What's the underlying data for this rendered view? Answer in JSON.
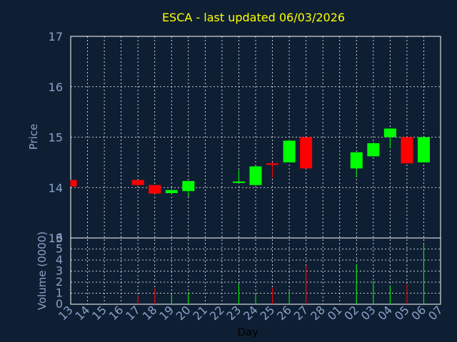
{
  "chart_data": {
    "type": "candlestick",
    "title": "ESCA - last updated 06/03/2026",
    "xlabel": "Day",
    "ylabel_price": "Price",
    "ylabel_volume": "Volume (0000)",
    "x_ticks": [
      "13",
      "14",
      "15",
      "16",
      "17",
      "18",
      "19",
      "20",
      "21",
      "22",
      "23",
      "24",
      "25",
      "26",
      "27",
      "28",
      "01",
      "02",
      "03",
      "04",
      "05",
      "06",
      "07"
    ],
    "price_ylim": [
      13,
      17
    ],
    "price_ticks": [
      "13",
      "14",
      "15",
      "16",
      "17"
    ],
    "volume_ylim": [
      0,
      6
    ],
    "volume_ticks": [
      "0",
      "1",
      "2",
      "3",
      "4",
      "5",
      "6"
    ],
    "grid": true,
    "up_color": "#00ff00",
    "down_color": "#ff0000",
    "candles": [
      {
        "day": "13",
        "open": 14.15,
        "high": 14.15,
        "low": 14.02,
        "close": 14.02,
        "volume": 0.0
      },
      {
        "day": "17",
        "open": 14.15,
        "high": 14.15,
        "low": 14.05,
        "close": 14.05,
        "volume": 0.8
      },
      {
        "day": "18",
        "open": 14.05,
        "high": 14.05,
        "low": 13.88,
        "close": 13.88,
        "volume": 1.4
      },
      {
        "day": "19",
        "open": 13.89,
        "high": 13.97,
        "low": 13.86,
        "close": 13.95,
        "volume": 0.9
      },
      {
        "day": "20",
        "open": 13.93,
        "high": 14.13,
        "low": 13.82,
        "close": 14.13,
        "volume": 1.1
      },
      {
        "day": "23",
        "open": 14.1,
        "high": 14.35,
        "low": 14.08,
        "close": 14.12,
        "volume": 1.9
      },
      {
        "day": "24",
        "open": 14.05,
        "high": 14.42,
        "low": 14.05,
        "close": 14.42,
        "volume": 0.9
      },
      {
        "day": "25",
        "open": 14.48,
        "high": 14.5,
        "low": 14.2,
        "close": 14.45,
        "volume": 1.5
      },
      {
        "day": "26",
        "open": 14.5,
        "high": 14.95,
        "low": 14.5,
        "close": 14.93,
        "volume": 1.2
      },
      {
        "day": "27",
        "open": 15.0,
        "high": 15.0,
        "low": 14.38,
        "close": 14.38,
        "volume": 3.5
      },
      {
        "day": "02",
        "open": 14.38,
        "high": 14.7,
        "low": 14.2,
        "close": 14.7,
        "volume": 3.6
      },
      {
        "day": "03",
        "open": 14.62,
        "high": 14.9,
        "low": 14.62,
        "close": 14.88,
        "volume": 2.1
      },
      {
        "day": "04",
        "open": 15.0,
        "high": 15.18,
        "low": 14.78,
        "close": 15.17,
        "volume": 1.7
      },
      {
        "day": "05",
        "open": 15.0,
        "high": 15.0,
        "low": 14.48,
        "close": 14.48,
        "volume": 1.8
      },
      {
        "day": "06",
        "open": 14.5,
        "high": 15.0,
        "low": 14.5,
        "close": 15.0,
        "volume": 5.4
      }
    ]
  }
}
